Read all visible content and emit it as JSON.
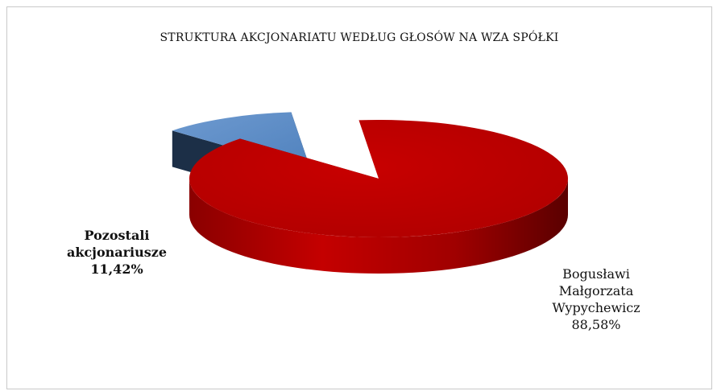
{
  "chart_data": {
    "type": "pie",
    "title": "STRUKTURA AKCJONARIATU WEDŁUG GŁOSÓW NA WZA SPÓŁKI",
    "slices": [
      {
        "label_lines": [
          "Bogusławi",
          "Małgorzata",
          "Wypychewicz"
        ],
        "value_label": "88,58%",
        "value": 88.58,
        "color": "#c00000"
      },
      {
        "label_lines": [
          "Pozostali",
          "akcjonariusze"
        ],
        "value_label": "11,42%",
        "value": 11.42,
        "color": "#4f81bd"
      }
    ],
    "style": "3d-exploded",
    "legend": "none"
  }
}
